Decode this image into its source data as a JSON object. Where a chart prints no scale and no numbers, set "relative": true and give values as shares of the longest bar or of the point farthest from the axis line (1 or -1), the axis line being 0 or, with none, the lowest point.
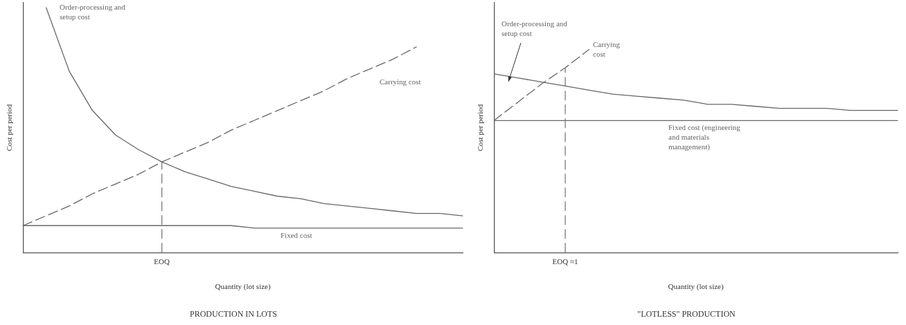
{
  "chart_data": [
    {
      "type": "line",
      "title": "PRODUCTION IN LOTS",
      "xlabel": "Quantity (lot size)",
      "ylabel": "Cost per period",
      "relative": true,
      "tick_labels": "x",
      "legend": false,
      "grid": false,
      "marker": "none",
      "categories": [
        null,
        null,
        null,
        null,
        null,
        null,
        null,
        null,
        null,
        null,
        null,
        null,
        null,
        null,
        null,
        null,
        null,
        null,
        null,
        null
      ],
      "series": [
        {
          "name": "Order-processing and setup cost",
          "color": "#666666",
          "line_style": "solid",
          "values": [
            null,
            1.0,
            0.74,
            0.58,
            0.48,
            0.42,
            0.37,
            0.33,
            0.3,
            0.27,
            0.25,
            0.23,
            0.22,
            0.2,
            0.19,
            0.18,
            0.17,
            0.16,
            0.16,
            0.15
          ]
        },
        {
          "name": "Carrying cost",
          "color": "#666666",
          "line_style": "dashed",
          "values": [
            0.11,
            0.15,
            0.19,
            0.24,
            0.28,
            0.32,
            0.37,
            0.41,
            0.45,
            0.5,
            0.54,
            0.58,
            0.62,
            0.66,
            0.71,
            0.75,
            0.79,
            0.84,
            null,
            null
          ]
        },
        {
          "name": "Fixed cost",
          "color": "#666666",
          "line_style": "solid",
          "values": [
            0.11,
            0.11,
            0.11,
            0.11,
            0.11,
            0.11,
            0.11,
            0.11,
            0.11,
            0.11,
            0.1,
            0.1,
            0.1,
            0.1,
            0.1,
            0.1,
            0.1,
            0.1,
            0.1,
            0.1
          ]
        }
      ],
      "ref_lines": [
        {
          "axis": "x",
          "label": "EOQ",
          "color": "#7a7a7a",
          "line_style": "dashed"
        }
      ]
    },
    {
      "type": "line",
      "title": "\"LOTLESS\" PRODUCTION",
      "xlabel": "Quantity (lot size)",
      "ylabel": "Cost per period",
      "relative": true,
      "tick_labels": "x",
      "legend": false,
      "grid": false,
      "marker": "none",
      "categories": [
        null,
        null,
        null,
        null,
        null,
        null,
        null,
        null,
        null,
        null,
        null,
        null,
        null,
        null,
        null,
        null,
        null,
        null
      ],
      "series": [
        {
          "name": "Order-processing and setup cost",
          "color": "#666666",
          "line_style": "solid",
          "values": [
            0.88,
            0.86,
            0.84,
            0.82,
            0.8,
            0.78,
            0.77,
            0.76,
            0.75,
            0.73,
            0.73,
            0.72,
            0.71,
            0.71,
            0.71,
            0.7,
            0.7,
            0.7
          ]
        },
        {
          "name": "Carrying cost",
          "color": "#666666",
          "line_style": "dashed",
          "values": [
            0.65,
            0.74,
            0.83,
            0.91,
            1.0,
            null,
            null,
            null,
            null,
            null,
            null,
            null,
            null,
            null,
            null,
            null,
            null,
            null
          ]
        },
        {
          "name": "Fixed cost (engineering and materials management)",
          "color": "#666666",
          "line_style": "solid",
          "values": [
            0.65,
            0.65,
            0.65,
            0.65,
            0.65,
            0.65,
            0.65,
            0.65,
            0.65,
            0.65,
            0.65,
            0.65,
            0.65,
            0.65,
            0.65,
            0.65,
            0.65,
            0.65
          ]
        }
      ],
      "ref_lines": [
        {
          "axis": "x",
          "label": "EOQ ≈1",
          "color": "#7a7a7a",
          "line_style": "dashed"
        }
      ]
    }
  ]
}
